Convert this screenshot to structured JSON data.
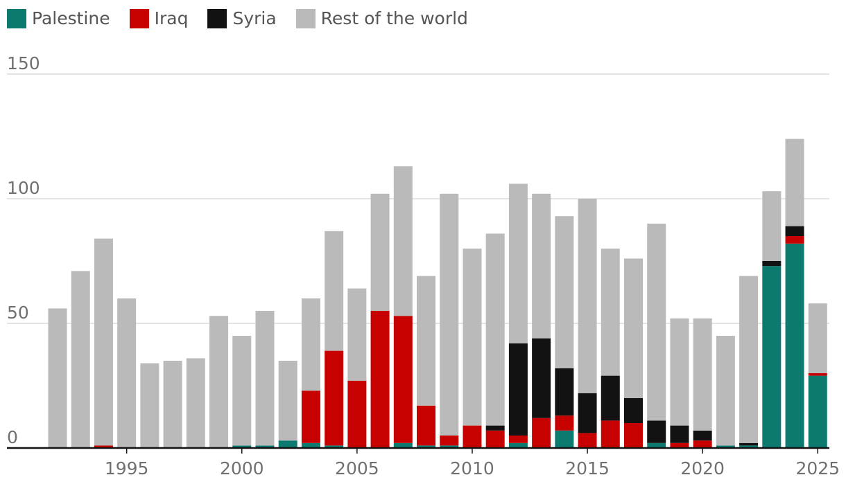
{
  "chart_data": {
    "type": "bar",
    "stacked": true,
    "legend": [
      {
        "name": "Palestine",
        "color": "#0d7a6f"
      },
      {
        "name": "Iraq",
        "color": "#c70000"
      },
      {
        "name": "Syria",
        "color": "#121212"
      },
      {
        "name": "Rest of the world",
        "color": "#bababa"
      }
    ],
    "categories": [
      1992,
      1993,
      1994,
      1995,
      1996,
      1997,
      1998,
      1999,
      2000,
      2001,
      2002,
      2003,
      2004,
      2005,
      2006,
      2007,
      2008,
      2009,
      2010,
      2011,
      2012,
      2013,
      2014,
      2015,
      2016,
      2017,
      2018,
      2019,
      2020,
      2021,
      2022,
      2023,
      2024,
      2025
    ],
    "series": [
      {
        "name": "Palestine",
        "values": [
          0,
          0,
          0,
          0,
          0,
          0,
          0,
          0,
          1,
          1,
          3,
          2,
          1,
          0,
          0,
          2,
          1,
          1,
          0,
          0,
          2,
          0,
          7,
          0,
          0,
          0,
          2,
          0,
          0,
          1,
          1,
          73,
          82,
          29
        ]
      },
      {
        "name": "Iraq",
        "values": [
          0,
          0,
          1,
          0,
          0,
          0,
          0,
          0,
          0,
          0,
          0,
          21,
          38,
          27,
          55,
          51,
          16,
          4,
          9,
          7,
          3,
          12,
          6,
          6,
          11,
          10,
          0,
          2,
          3,
          0,
          0,
          0,
          3,
          1
        ]
      },
      {
        "name": "Syria",
        "values": [
          0,
          0,
          0,
          0,
          0,
          0,
          0,
          0,
          0,
          0,
          0,
          0,
          0,
          0,
          0,
          0,
          0,
          0,
          0,
          2,
          37,
          32,
          19,
          16,
          18,
          10,
          9,
          7,
          4,
          0,
          1,
          2,
          4,
          0
        ]
      },
      {
        "name": "Rest of the world",
        "values": [
          56,
          71,
          83,
          60,
          34,
          35,
          36,
          53,
          44,
          54,
          32,
          37,
          48,
          37,
          47,
          60,
          52,
          97,
          71,
          77,
          64,
          58,
          61,
          78,
          51,
          56,
          79,
          43,
          45,
          44,
          67,
          28,
          35,
          28
        ]
      }
    ],
    "yticks": [
      0,
      50,
      100,
      150
    ],
    "xticks": [
      1995,
      2000,
      2005,
      2010,
      2015,
      2020,
      2025
    ],
    "ylim": [
      0,
      150
    ],
    "title": "",
    "xlabel": "",
    "ylabel": "",
    "grid": true
  }
}
